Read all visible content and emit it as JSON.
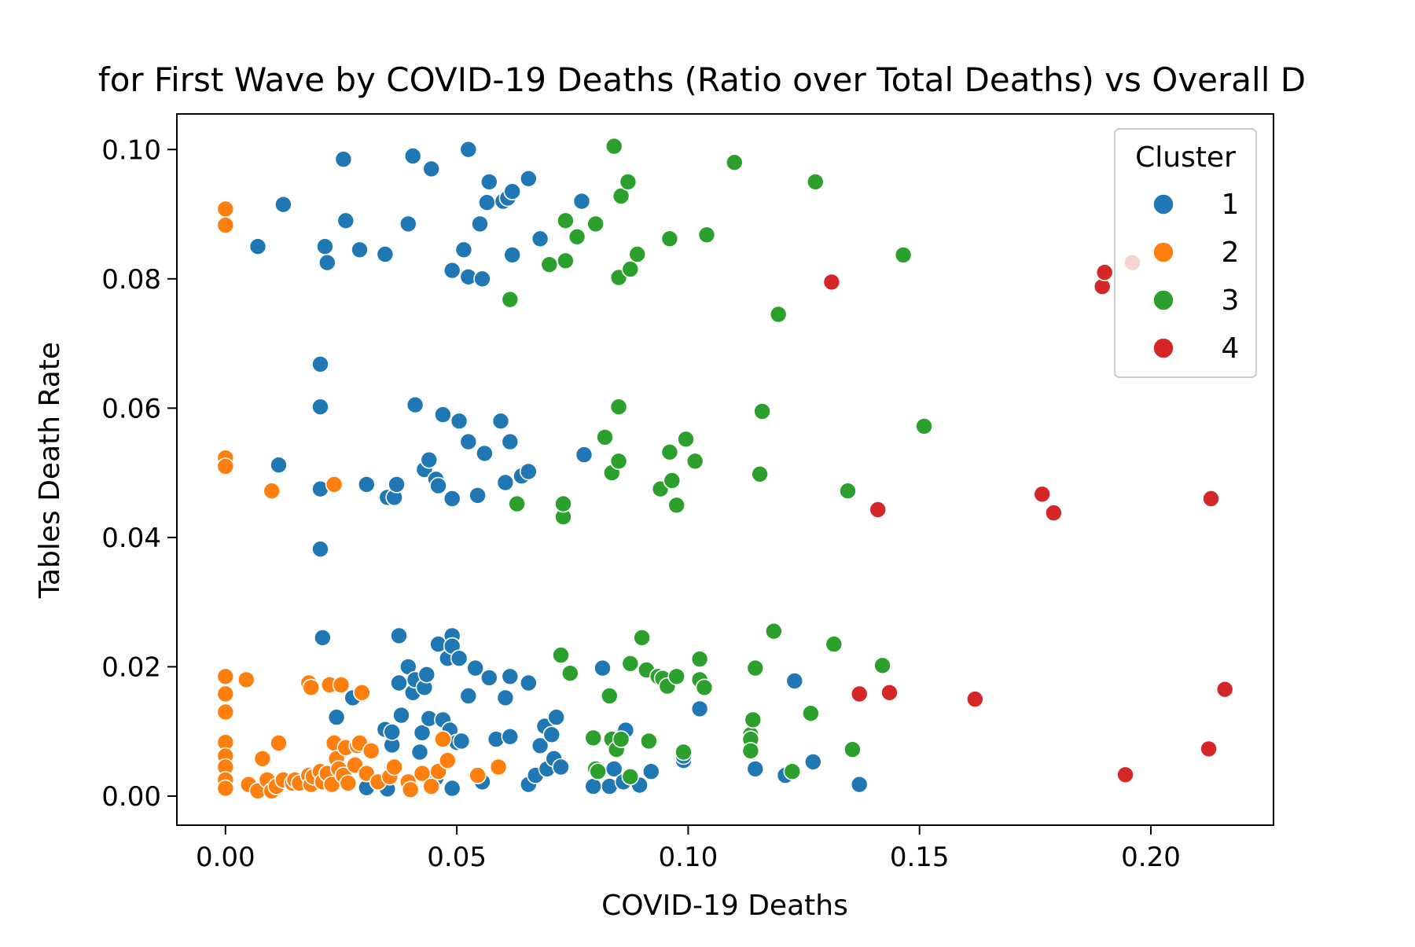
{
  "chart_data": {
    "type": "scatter",
    "title": "for First Wave by COVID-19 Deaths (Ratio over Total Deaths) vs Overall D",
    "xlabel": "COVID-19 Deaths",
    "ylabel": "Tables Death Rate",
    "xlim": [
      -0.0105,
      0.2265
    ],
    "ylim": [
      -0.0045,
      0.1055
    ],
    "xticks": [
      0.0,
      0.05,
      0.1,
      0.15,
      0.2
    ],
    "xtick_labels": [
      "0.00",
      "0.05",
      "0.10",
      "0.15",
      "0.20"
    ],
    "yticks": [
      0.0,
      0.02,
      0.04,
      0.06,
      0.08,
      0.1
    ],
    "ytick_labels": [
      "0.00",
      "0.02",
      "0.04",
      "0.06",
      "0.08",
      "0.10"
    ],
    "grid": false,
    "legend": {
      "title": "Cluster",
      "position": "top-right"
    },
    "series": [
      {
        "name": "1",
        "color": "#1f77b4",
        "points": [
          [
            0.007,
            0.085
          ],
          [
            0.0125,
            0.0915
          ],
          [
            0.0215,
            0.085
          ],
          [
            0.022,
            0.0825
          ],
          [
            0.0255,
            0.0985
          ],
          [
            0.026,
            0.089
          ],
          [
            0.029,
            0.0845
          ],
          [
            0.0345,
            0.0838
          ],
          [
            0.0395,
            0.0885
          ],
          [
            0.0405,
            0.099
          ],
          [
            0.0445,
            0.097
          ],
          [
            0.049,
            0.0813
          ],
          [
            0.0515,
            0.0845
          ],
          [
            0.0525,
            0.0803
          ],
          [
            0.0525,
            0.1
          ],
          [
            0.055,
            0.0885
          ],
          [
            0.0555,
            0.08
          ],
          [
            0.0565,
            0.0918
          ],
          [
            0.057,
            0.095
          ],
          [
            0.06,
            0.092
          ],
          [
            0.061,
            0.0925
          ],
          [
            0.062,
            0.0935
          ],
          [
            0.062,
            0.0837
          ],
          [
            0.0655,
            0.0955
          ],
          [
            0.068,
            0.0862
          ],
          [
            0.077,
            0.092
          ],
          [
            0.0205,
            0.0668
          ],
          [
            0.0205,
            0.0602
          ],
          [
            0.0115,
            0.0512
          ],
          [
            0.0205,
            0.0475
          ],
          [
            0.0205,
            0.0382
          ],
          [
            0.0305,
            0.0482
          ],
          [
            0.035,
            0.0462
          ],
          [
            0.0365,
            0.0462
          ],
          [
            0.037,
            0.0482
          ],
          [
            0.041,
            0.0605
          ],
          [
            0.043,
            0.0505
          ],
          [
            0.044,
            0.052
          ],
          [
            0.0455,
            0.049
          ],
          [
            0.046,
            0.048
          ],
          [
            0.047,
            0.059
          ],
          [
            0.049,
            0.046
          ],
          [
            0.0505,
            0.058
          ],
          [
            0.0525,
            0.0548
          ],
          [
            0.0545,
            0.0465
          ],
          [
            0.056,
            0.053
          ],
          [
            0.0595,
            0.058
          ],
          [
            0.0605,
            0.0485
          ],
          [
            0.0615,
            0.0548
          ],
          [
            0.064,
            0.0495
          ],
          [
            0.0655,
            0.0502
          ],
          [
            0.0775,
            0.0528
          ],
          [
            0.021,
            0.0245
          ],
          [
            0.024,
            0.0122
          ],
          [
            0.0275,
            0.0152
          ],
          [
            0.0305,
            0.0013
          ],
          [
            0.0345,
            0.0103
          ],
          [
            0.035,
            0.0011
          ],
          [
            0.036,
            0.0079
          ],
          [
            0.036,
            0.0099
          ],
          [
            0.0375,
            0.0248
          ],
          [
            0.0375,
            0.0175
          ],
          [
            0.038,
            0.0125
          ],
          [
            0.0395,
            0.02
          ],
          [
            0.0405,
            0.016
          ],
          [
            0.041,
            0.018
          ],
          [
            0.042,
            0.0068
          ],
          [
            0.0425,
            0.0098
          ],
          [
            0.043,
            0.0168
          ],
          [
            0.0435,
            0.0188
          ],
          [
            0.044,
            0.012
          ],
          [
            0.0455,
            0.0028
          ],
          [
            0.046,
            0.0235
          ],
          [
            0.047,
            0.0118
          ],
          [
            0.048,
            0.0213
          ],
          [
            0.0485,
            0.0102
          ],
          [
            0.049,
            0.0248
          ],
          [
            0.049,
            0.0232
          ],
          [
            0.049,
            0.0012
          ],
          [
            0.05,
            0.0083
          ],
          [
            0.0505,
            0.0213
          ],
          [
            0.051,
            0.0085
          ],
          [
            0.0525,
            0.0155
          ],
          [
            0.054,
            0.0198
          ],
          [
            0.0555,
            0.0022
          ],
          [
            0.057,
            0.0183
          ],
          [
            0.0585,
            0.0088
          ],
          [
            0.0605,
            0.0152
          ],
          [
            0.0615,
            0.0185
          ],
          [
            0.0615,
            0.0092
          ],
          [
            0.0655,
            0.0175
          ],
          [
            0.0655,
            0.0018
          ],
          [
            0.067,
            0.0032
          ],
          [
            0.068,
            0.0078
          ],
          [
            0.069,
            0.0108
          ],
          [
            0.0695,
            0.0042
          ],
          [
            0.0705,
            0.0095
          ],
          [
            0.071,
            0.0058
          ],
          [
            0.0715,
            0.0122
          ],
          [
            0.0725,
            0.0045
          ],
          [
            0.0795,
            0.0015
          ],
          [
            0.0815,
            0.0198
          ],
          [
            0.083,
            0.0015
          ],
          [
            0.084,
            0.0042
          ],
          [
            0.086,
            0.0022
          ],
          [
            0.0865,
            0.0102
          ],
          [
            0.0895,
            0.0017
          ],
          [
            0.092,
            0.0038
          ],
          [
            0.099,
            0.0055
          ],
          [
            0.099,
            0.0062
          ],
          [
            0.1025,
            0.0135
          ],
          [
            0.1145,
            0.0042
          ],
          [
            0.121,
            0.0032
          ],
          [
            0.123,
            0.0178
          ],
          [
            0.127,
            0.0053
          ],
          [
            0.137,
            0.0018
          ]
        ]
      },
      {
        "name": "2",
        "color": "#ff7f0e",
        "points": [
          [
            0.0,
            0.0908
          ],
          [
            0.0,
            0.0883
          ],
          [
            0.0,
            0.0523
          ],
          [
            0.0,
            0.051
          ],
          [
            0.01,
            0.0472
          ],
          [
            0.0235,
            0.0482
          ],
          [
            0.0,
            0.0185
          ],
          [
            0.0,
            0.0158
          ],
          [
            0.0,
            0.013
          ],
          [
            0.0,
            0.0083
          ],
          [
            0.0,
            0.0062
          ],
          [
            0.0,
            0.0045
          ],
          [
            0.0,
            0.0025
          ],
          [
            0.0,
            0.0012
          ],
          [
            0.0045,
            0.018
          ],
          [
            0.005,
            0.0018
          ],
          [
            0.007,
            0.0008
          ],
          [
            0.008,
            0.0058
          ],
          [
            0.009,
            0.0025
          ],
          [
            0.01,
            0.0008
          ],
          [
            0.011,
            0.0015
          ],
          [
            0.0115,
            0.0082
          ],
          [
            0.0125,
            0.0025
          ],
          [
            0.0145,
            0.002
          ],
          [
            0.015,
            0.0025
          ],
          [
            0.016,
            0.002
          ],
          [
            0.018,
            0.0032
          ],
          [
            0.0185,
            0.0018
          ],
          [
            0.018,
            0.0175
          ],
          [
            0.0185,
            0.0168
          ],
          [
            0.019,
            0.003
          ],
          [
            0.0205,
            0.0038
          ],
          [
            0.021,
            0.0022
          ],
          [
            0.022,
            0.0035
          ],
          [
            0.0225,
            0.0172
          ],
          [
            0.023,
            0.0018
          ],
          [
            0.0235,
            0.0082
          ],
          [
            0.024,
            0.0058
          ],
          [
            0.0245,
            0.0042
          ],
          [
            0.025,
            0.0172
          ],
          [
            0.0255,
            0.0032
          ],
          [
            0.026,
            0.0075
          ],
          [
            0.0265,
            0.002
          ],
          [
            0.028,
            0.0048
          ],
          [
            0.0285,
            0.0078
          ],
          [
            0.029,
            0.0082
          ],
          [
            0.0295,
            0.016
          ],
          [
            0.0305,
            0.0035
          ],
          [
            0.0315,
            0.007
          ],
          [
            0.033,
            0.0022
          ],
          [
            0.0355,
            0.003
          ],
          [
            0.0365,
            0.0045
          ],
          [
            0.0395,
            0.0022
          ],
          [
            0.04,
            0.001
          ],
          [
            0.0425,
            0.0035
          ],
          [
            0.0445,
            0.0015
          ],
          [
            0.046,
            0.0038
          ],
          [
            0.047,
            0.0088
          ],
          [
            0.048,
            0.0055
          ],
          [
            0.0545,
            0.0032
          ],
          [
            0.059,
            0.0045
          ]
        ]
      },
      {
        "name": "3",
        "color": "#2ca02c",
        "points": [
          [
            0.0615,
            0.0768
          ],
          [
            0.07,
            0.0822
          ],
          [
            0.0735,
            0.0828
          ],
          [
            0.0735,
            0.089
          ],
          [
            0.076,
            0.0865
          ],
          [
            0.08,
            0.0885
          ],
          [
            0.084,
            0.1005
          ],
          [
            0.085,
            0.0802
          ],
          [
            0.0855,
            0.0928
          ],
          [
            0.087,
            0.095
          ],
          [
            0.0875,
            0.0815
          ],
          [
            0.089,
            0.0838
          ],
          [
            0.096,
            0.0862
          ],
          [
            0.104,
            0.0868
          ],
          [
            0.11,
            0.098
          ],
          [
            0.1195,
            0.0745
          ],
          [
            0.1275,
            0.095
          ],
          [
            0.1465,
            0.0837
          ],
          [
            0.063,
            0.0452
          ],
          [
            0.073,
            0.0432
          ],
          [
            0.073,
            0.0452
          ],
          [
            0.082,
            0.0555
          ],
          [
            0.0835,
            0.05
          ],
          [
            0.085,
            0.0518
          ],
          [
            0.085,
            0.0602
          ],
          [
            0.094,
            0.0475
          ],
          [
            0.096,
            0.0532
          ],
          [
            0.0965,
            0.0488
          ],
          [
            0.0975,
            0.045
          ],
          [
            0.0995,
            0.0552
          ],
          [
            0.1015,
            0.0518
          ],
          [
            0.1155,
            0.0498
          ],
          [
            0.116,
            0.0595
          ],
          [
            0.1345,
            0.0472
          ],
          [
            0.151,
            0.0572
          ],
          [
            0.0725,
            0.0218
          ],
          [
            0.0745,
            0.019
          ],
          [
            0.0795,
            0.009
          ],
          [
            0.08,
            0.0042
          ],
          [
            0.0805,
            0.0038
          ],
          [
            0.083,
            0.0155
          ],
          [
            0.0835,
            0.0088
          ],
          [
            0.0845,
            0.0072
          ],
          [
            0.0855,
            0.0088
          ],
          [
            0.0875,
            0.0205
          ],
          [
            0.0875,
            0.003
          ],
          [
            0.09,
            0.0245
          ],
          [
            0.091,
            0.0195
          ],
          [
            0.0915,
            0.0085
          ],
          [
            0.0935,
            0.0185
          ],
          [
            0.0945,
            0.0182
          ],
          [
            0.0955,
            0.017
          ],
          [
            0.0975,
            0.0185
          ],
          [
            0.099,
            0.0068
          ],
          [
            0.1025,
            0.0212
          ],
          [
            0.1025,
            0.018
          ],
          [
            0.1035,
            0.0168
          ],
          [
            0.1135,
            0.0095
          ],
          [
            0.1135,
            0.0088
          ],
          [
            0.1135,
            0.007
          ],
          [
            0.114,
            0.0118
          ],
          [
            0.1145,
            0.0198
          ],
          [
            0.1185,
            0.0255
          ],
          [
            0.1225,
            0.0038
          ],
          [
            0.1265,
            0.0128
          ],
          [
            0.1315,
            0.0235
          ],
          [
            0.1355,
            0.0072
          ],
          [
            0.142,
            0.0202
          ]
        ]
      },
      {
        "name": "4",
        "color": "#d62728",
        "points": [
          [
            0.131,
            0.0795
          ],
          [
            0.1895,
            0.0788
          ],
          [
            0.19,
            0.081
          ],
          [
            0.196,
            0.0825
          ],
          [
            0.141,
            0.0443
          ],
          [
            0.1765,
            0.0467
          ],
          [
            0.179,
            0.0438
          ],
          [
            0.213,
            0.046
          ],
          [
            0.137,
            0.0158
          ],
          [
            0.1435,
            0.016
          ],
          [
            0.162,
            0.015
          ],
          [
            0.1945,
            0.0033
          ],
          [
            0.2125,
            0.0073
          ],
          [
            0.216,
            0.0165
          ]
        ]
      }
    ]
  }
}
